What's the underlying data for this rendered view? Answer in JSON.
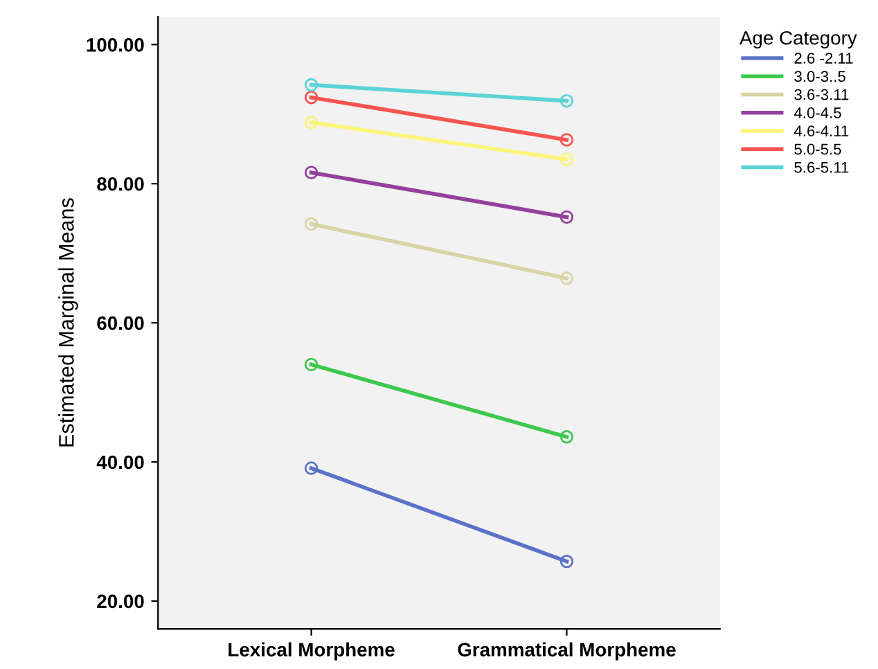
{
  "chart_data": {
    "type": "line",
    "ylabel": "Estimated Marginal Means",
    "legend_title": "Age Category",
    "categories": [
      "Lexical Morpheme",
      "Grammatical Morpheme"
    ],
    "series": [
      {
        "name": "2.6 -2.11",
        "color": "#5a73c8",
        "values": [
          39.1,
          25.7
        ]
      },
      {
        "name": "3.0-3..5",
        "color": "#3ec84e",
        "values": [
          54.0,
          43.6
        ]
      },
      {
        "name": "3.6-3.11",
        "color": "#d9d3a6",
        "values": [
          74.2,
          66.4
        ]
      },
      {
        "name": "4.0-4.5",
        "color": "#93409e",
        "values": [
          81.6,
          75.2
        ]
      },
      {
        "name": "4.6-4.11",
        "color": "#fbf57a",
        "values": [
          88.8,
          83.5
        ]
      },
      {
        "name": "5.0-5.5",
        "color": "#f8544f",
        "values": [
          92.4,
          86.3
        ]
      },
      {
        "name": "5.6-5.11",
        "color": "#5cd3d6",
        "values": [
          94.2,
          91.9
        ]
      }
    ],
    "ylim": [
      16,
      104
    ],
    "yticks": [
      {
        "value": 20,
        "label": "20.00"
      },
      {
        "value": 40,
        "label": "40.00"
      },
      {
        "value": 60,
        "label": "60.00"
      },
      {
        "value": 80,
        "label": "80.00"
      },
      {
        "value": 100,
        "label": "100.00"
      }
    ],
    "marker": "circle",
    "line_style": "solid",
    "grid": false,
    "legend": "top right"
  }
}
